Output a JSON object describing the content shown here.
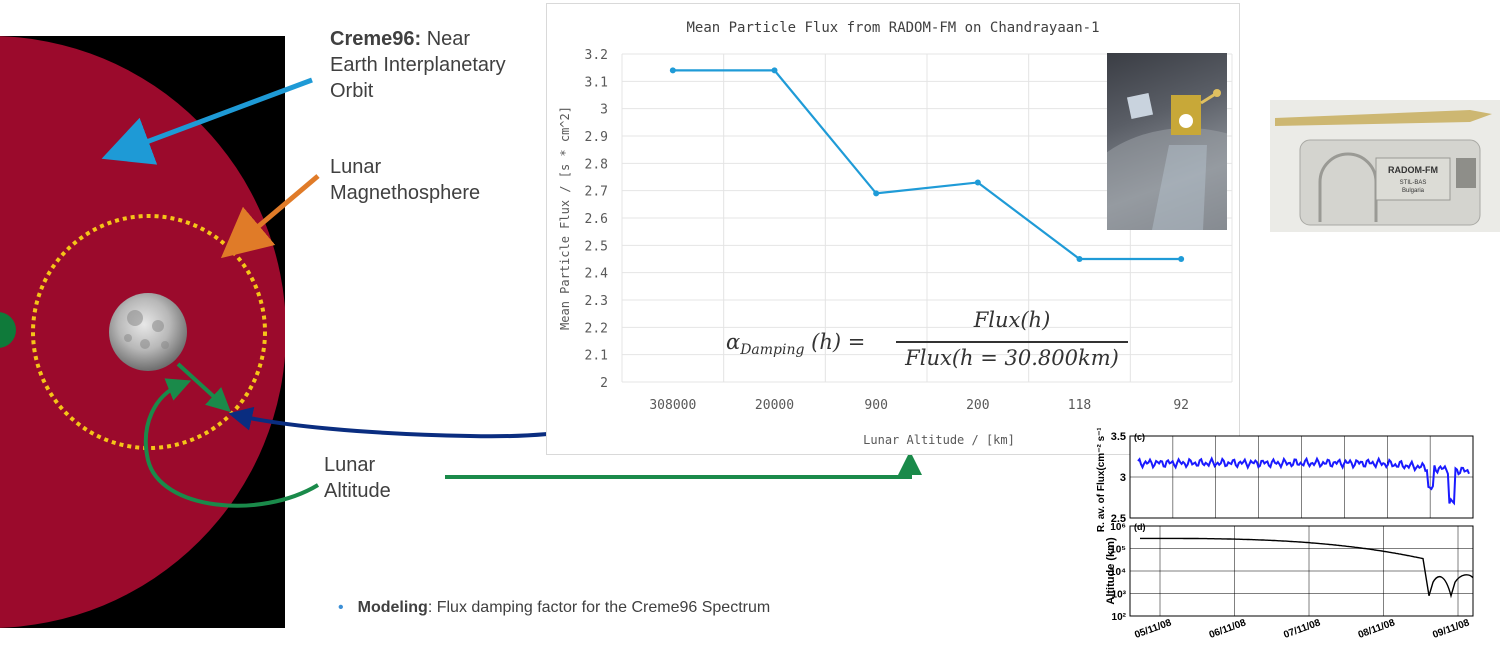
{
  "labels": {
    "creme_bold": "Creme96:",
    "creme_rest": "Near Earth Interplanetary Orbit",
    "creme_line1": "Near",
    "creme_line2": "Earth Interplanetary",
    "creme_line3": "Orbit",
    "lunar_mag_1": "Lunar",
    "lunar_mag_2": "Magnethosphere",
    "lunar_alt_1": "Lunar",
    "lunar_alt_2": "Altitude",
    "modeling_bold": "Modeling",
    "modeling_rest": ": Flux damping factor for the Creme96 Spectrum"
  },
  "formula": {
    "lhs": "α",
    "lhs_sub": "Damping",
    "lhs_arg": "(h) =",
    "numerator": "Flux(h)",
    "denominator": "Flux(h = 30.800km)"
  },
  "device": {
    "label": "RADOM-FM",
    "sub1": "STIL-BAS",
    "sub2": "Bulgaria"
  },
  "colors": {
    "sphere": "#9b0a2c",
    "background_black": "#000000",
    "orbit_dotted": "#f5c518",
    "arrow_blue_light": "#1e9ad6",
    "arrow_orange": "#e07b28",
    "arrow_green": "#1a8a4a",
    "arrow_navy": "#0a2d80",
    "series": "#1f9bd7"
  },
  "chart_data": [
    {
      "type": "line",
      "title": "Mean Particle Flux from RADOM-FM on Chandrayaan-1",
      "xlabel": "Lunar Altitude / [km]",
      "ylabel": "Mean Particle Flux / [s * cm^2]",
      "categories": [
        "308000",
        "20000",
        "900",
        "200",
        "118",
        "92"
      ],
      "values": [
        3.14,
        3.14,
        2.69,
        2.73,
        2.45,
        2.45
      ],
      "ylim": [
        2,
        3.2
      ],
      "yticks": [
        "2",
        "2.1",
        "2.2",
        "2.3",
        "2.4",
        "2.5",
        "2.6",
        "2.7",
        "2.8",
        "2.9",
        "3",
        "3.1",
        "3.2"
      ],
      "grid": true
    },
    {
      "type": "line",
      "panel": "(c)",
      "ylabel": "R. av. of Flux(cm⁻² s⁻¹)",
      "yticks": [
        "2.5",
        "3",
        "3.5"
      ],
      "ylim": [
        2.5,
        3.5
      ]
    },
    {
      "type": "line",
      "panel": "(d)",
      "ylabel": "Altitude (km)",
      "yscale": "log",
      "yticks": [
        "10²",
        "10³",
        "10⁴",
        "10⁵",
        "10⁶"
      ],
      "ylim": [
        100,
        1000000
      ],
      "xticks": [
        "05/11/08",
        "06/11/08",
        "07/11/08",
        "08/11/08",
        "09/11/08"
      ]
    }
  ]
}
